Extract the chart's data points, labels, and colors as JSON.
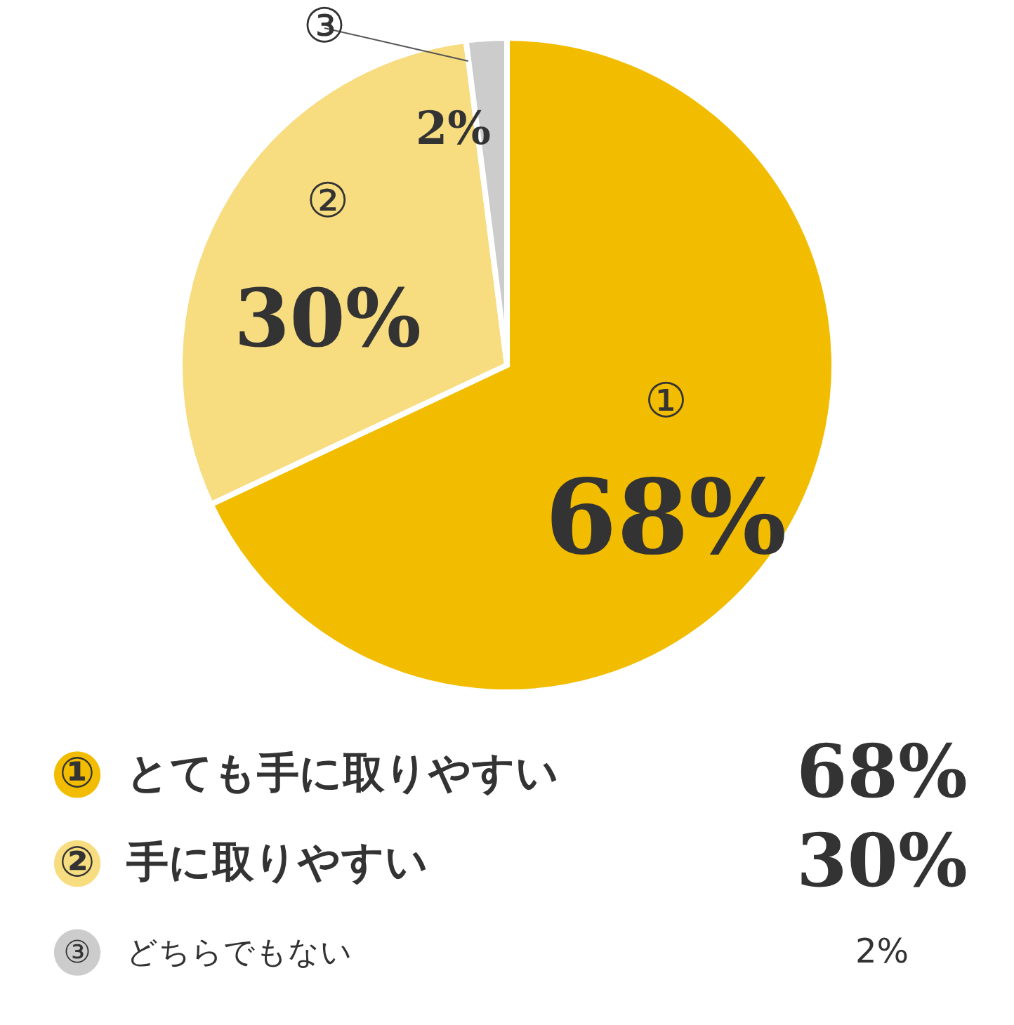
{
  "chart_data": {
    "type": "pie",
    "categories": [
      "とても手に取りやすい",
      "手に取りやすい",
      "どちらでもない"
    ],
    "values": [
      68,
      30,
      2
    ],
    "colors": [
      "#f2bc00",
      "#f7dc80",
      "#cccccc"
    ],
    "value_labels": [
      "68%",
      "30%",
      "2%"
    ],
    "annotations": [
      "①",
      "②",
      "③"
    ],
    "legend": "bottom"
  }
}
